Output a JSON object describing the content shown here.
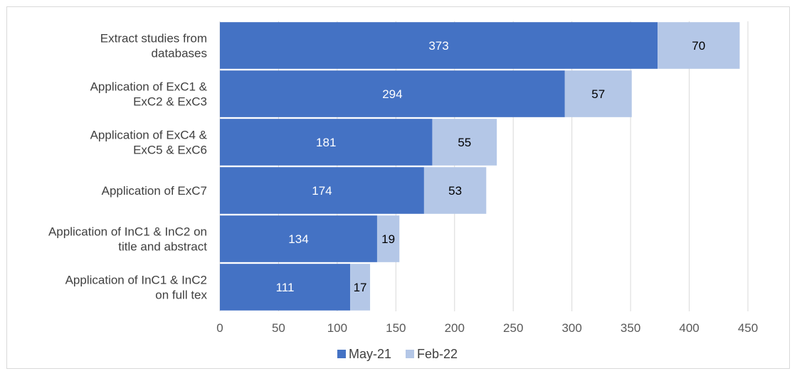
{
  "chart_data": {
    "type": "bar",
    "orientation": "horizontal",
    "stacked": true,
    "categories": [
      [
        "Extract studies from",
        "databases"
      ],
      [
        "Application of ExC1 &",
        "ExC2 & ExC3"
      ],
      [
        "Application of ExC4 &",
        "ExC5 & ExC6"
      ],
      [
        "Application of ExC7"
      ],
      [
        "Application of InC1 & InC2 on",
        "title and abstract"
      ],
      [
        "Application of InC1 & InC2",
        "on full tex"
      ]
    ],
    "series": [
      {
        "name": "May-21",
        "values": [
          373,
          294,
          181,
          174,
          134,
          111
        ],
        "color": "#4472c4",
        "label_color": "#ffffff"
      },
      {
        "name": "Feb-22",
        "values": [
          70,
          57,
          55,
          53,
          19,
          17
        ],
        "color": "#b4c7e7",
        "label_color": "#000000"
      }
    ],
    "xlim": [
      0,
      450
    ],
    "xticks": [
      0,
      50,
      100,
      150,
      200,
      250,
      300,
      350,
      400,
      450
    ],
    "grid": "vertical",
    "legend": "bottom"
  }
}
